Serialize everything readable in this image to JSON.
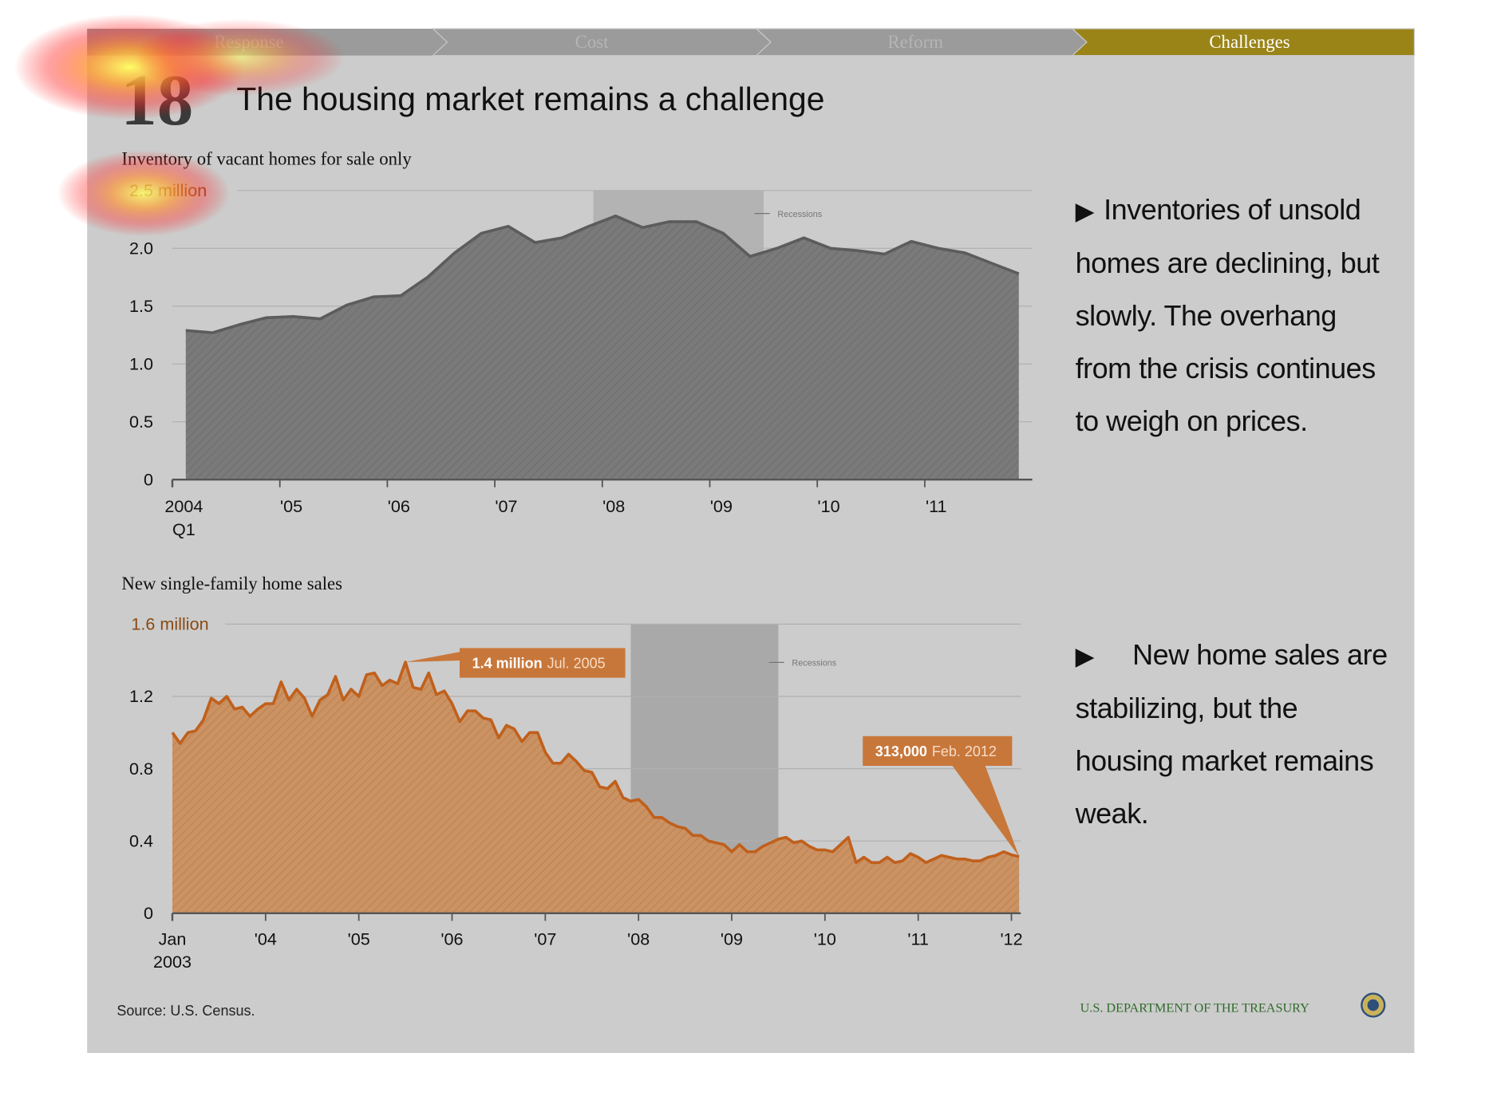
{
  "nav": [
    "Response",
    "Cost",
    "Reform",
    "Challenges"
  ],
  "slide_number": "18",
  "title": "The housing market remains a challenge",
  "bullets": [
    "Inventories of unsold homes are declining, but slowly. The overhang from the crisis continues to weigh on prices.",
    "New home sales are stabilizing, but the housing market remains weak."
  ],
  "source": "Source: U.S. Census.",
  "footer": "U.S. DEPARTMENT OF THE TREASURY",
  "chart_data": [
    {
      "type": "area",
      "title": "Inventory of vacant homes for sale only",
      "x": [
        2004.125,
        2004.375,
        2004.625,
        2004.875,
        2005.125,
        2005.375,
        2005.625,
        2005.875,
        2006.125,
        2006.375,
        2006.625,
        2006.875,
        2007.125,
        2007.375,
        2007.625,
        2007.875,
        2008.125,
        2008.375,
        2008.625,
        2008.875,
        2009.125,
        2009.375,
        2009.625,
        2009.875,
        2010.125,
        2010.375,
        2010.625,
        2010.875,
        2011.125,
        2011.375,
        2011.625,
        2011.875
      ],
      "values": [
        1.29,
        1.27,
        1.34,
        1.4,
        1.41,
        1.39,
        1.51,
        1.58,
        1.59,
        1.75,
        1.96,
        2.13,
        2.19,
        2.05,
        2.09,
        2.19,
        2.28,
        2.18,
        2.23,
        2.23,
        2.13,
        1.93,
        2.0,
        2.09,
        2.0,
        1.98,
        1.95,
        2.06,
        2.0,
        1.96,
        1.87,
        1.78
      ],
      "color": "#7a7a7a",
      "line_color": "#5c5c5c",
      "xlim": [
        2004,
        2012
      ],
      "xticks": [
        2004,
        {
          "value": 2005,
          "label": "'05"
        },
        {
          "value": 2006,
          "label": "'06"
        },
        {
          "value": 2007,
          "label": "'07"
        },
        {
          "value": 2008,
          "label": "'08"
        },
        {
          "value": 2009,
          "label": "'09"
        },
        {
          "value": 2010,
          "label": "'10"
        },
        {
          "value": 2011,
          "label": "'11"
        }
      ],
      "x_sublabel": "Q1",
      "ylim": [
        0,
        2.5
      ],
      "yticks": [
        0,
        0.5,
        {
          "value": 1,
          "label": "1.0"
        },
        1.5,
        {
          "value": 2,
          "label": "2.0"
        },
        {
          "value": 2.5,
          "label": "2.5 million"
        }
      ],
      "grid": true,
      "recession": {
        "label": "Recessions",
        "start": 2007.917,
        "end": 2009.5,
        "color": "#b3b3b3"
      }
    },
    {
      "type": "area",
      "title": "New single-family home sales",
      "x": [
        2003,
        2003.083,
        2003.167,
        2003.25,
        2003.333,
        2003.417,
        2003.5,
        2003.583,
        2003.667,
        2003.75,
        2003.833,
        2003.917,
        2004,
        2004.083,
        2004.167,
        2004.25,
        2004.333,
        2004.417,
        2004.5,
        2004.583,
        2004.667,
        2004.75,
        2004.833,
        2004.917,
        2005,
        2005.083,
        2005.167,
        2005.25,
        2005.333,
        2005.417,
        2005.5,
        2005.583,
        2005.667,
        2005.75,
        2005.833,
        2005.917,
        2006,
        2006.083,
        2006.167,
        2006.25,
        2006.333,
        2006.417,
        2006.5,
        2006.583,
        2006.667,
        2006.75,
        2006.833,
        2006.917,
        2007,
        2007.083,
        2007.167,
        2007.25,
        2007.333,
        2007.417,
        2007.5,
        2007.583,
        2007.667,
        2007.75,
        2007.833,
        2007.917,
        2008,
        2008.083,
        2008.167,
        2008.25,
        2008.333,
        2008.417,
        2008.5,
        2008.583,
        2008.667,
        2008.75,
        2008.833,
        2008.917,
        2009,
        2009.083,
        2009.167,
        2009.25,
        2009.333,
        2009.417,
        2009.5,
        2009.583,
        2009.667,
        2009.75,
        2009.833,
        2009.917,
        2010,
        2010.083,
        2010.167,
        2010.25,
        2010.333,
        2010.417,
        2010.5,
        2010.583,
        2010.667,
        2010.75,
        2010.833,
        2010.917,
        2011,
        2011.083,
        2011.167,
        2011.25,
        2011.333,
        2011.417,
        2011.5,
        2011.583,
        2011.667,
        2011.75,
        2011.833,
        2011.917,
        2012,
        2012.083
      ],
      "values": [
        1.0,
        0.94,
        1.0,
        1.01,
        1.07,
        1.19,
        1.16,
        1.2,
        1.13,
        1.14,
        1.09,
        1.13,
        1.16,
        1.16,
        1.28,
        1.18,
        1.24,
        1.19,
        1.09,
        1.18,
        1.21,
        1.31,
        1.18,
        1.24,
        1.2,
        1.32,
        1.33,
        1.26,
        1.29,
        1.27,
        1.39,
        1.25,
        1.24,
        1.33,
        1.21,
        1.23,
        1.16,
        1.06,
        1.12,
        1.12,
        1.08,
        1.07,
        0.97,
        1.04,
        1.02,
        0.95,
        1.0,
        1.0,
        0.89,
        0.83,
        0.83,
        0.88,
        0.84,
        0.79,
        0.78,
        0.7,
        0.69,
        0.73,
        0.64,
        0.62,
        0.63,
        0.59,
        0.53,
        0.53,
        0.5,
        0.48,
        0.47,
        0.43,
        0.43,
        0.4,
        0.39,
        0.38,
        0.34,
        0.38,
        0.34,
        0.34,
        0.37,
        0.39,
        0.41,
        0.42,
        0.39,
        0.4,
        0.37,
        0.35,
        0.35,
        0.34,
        0.38,
        0.42,
        0.28,
        0.31,
        0.28,
        0.28,
        0.31,
        0.28,
        0.29,
        0.33,
        0.31,
        0.28,
        0.3,
        0.32,
        0.31,
        0.3,
        0.3,
        0.29,
        0.29,
        0.31,
        0.32,
        0.34,
        0.323,
        0.313
      ],
      "color": "#cc9262",
      "line_color": "#c0601c",
      "xlim": [
        2003,
        2012.1
      ],
      "xticks": [
        {
          "value": 2003,
          "label": "Jan"
        },
        {
          "value": 2004,
          "label": "'04"
        },
        {
          "value": 2005,
          "label": "'05"
        },
        {
          "value": 2006,
          "label": "'06"
        },
        {
          "value": 2007,
          "label": "'07"
        },
        {
          "value": 2008,
          "label": "'08"
        },
        {
          "value": 2009,
          "label": "'09"
        },
        {
          "value": 2010,
          "label": "'10"
        },
        {
          "value": 2011,
          "label": "'11"
        },
        {
          "value": 2012,
          "label": "'12"
        }
      ],
      "x_sublabel": "2003",
      "ylim": [
        0,
        1.6
      ],
      "yticks": [
        0,
        0.4,
        0.8,
        1.2,
        {
          "value": 1.6,
          "label": "1.6 million"
        }
      ],
      "grid": true,
      "recession": {
        "label": "Recessions",
        "start": 2007.917,
        "end": 2009.5,
        "color": "#a9a9a9"
      },
      "annotations": [
        {
          "label": "1.4 million",
          "date": "Jul. 2005",
          "color": "#c8773a"
        },
        {
          "label": "313,000",
          "date": "Feb. 2012",
          "color": "#c8773a"
        }
      ]
    }
  ]
}
